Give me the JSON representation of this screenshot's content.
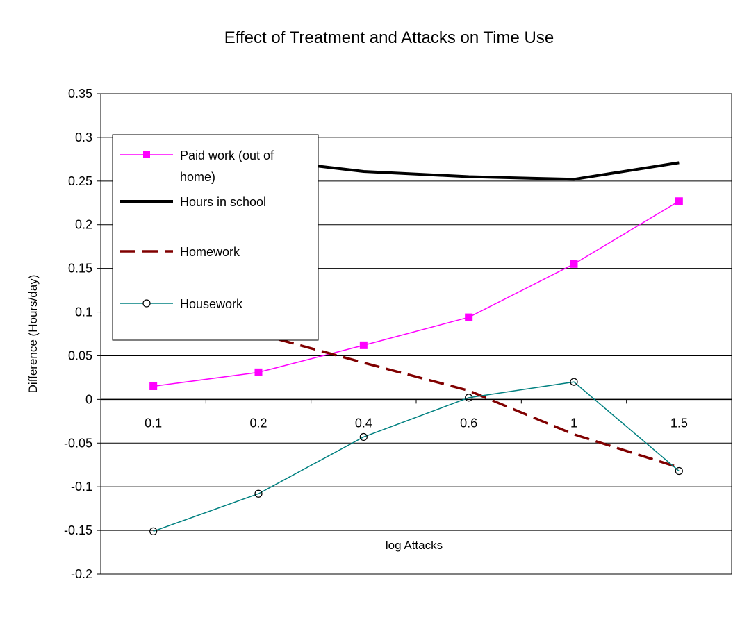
{
  "chart_data": {
    "type": "line",
    "title": "Effect of Treatment and Attacks on Time Use",
    "xlabel": "log Attacks",
    "ylabel": "Difference (Hours/day)",
    "categories": [
      "0.1",
      "0.2",
      "0.4",
      "0.6",
      "1",
      "1.5"
    ],
    "ylim": [
      -0.2,
      0.35
    ],
    "yticks": [
      "0.35",
      "0.3",
      "0.25",
      "0.2",
      "0.15",
      "0.1",
      "0.05",
      "0",
      "-0.05",
      "-0.1",
      "-0.15",
      "-0.2"
    ],
    "grid": true,
    "legend_position": "upper-left",
    "series": [
      {
        "name": "Paid work (out of home)",
        "legend_lines": [
          "Paid work (out of",
          "home)"
        ],
        "values": [
          0.015,
          0.031,
          0.062,
          0.094,
          0.155,
          0.227
        ],
        "color": "#ff00ff",
        "style": "solid-square-markers"
      },
      {
        "name": "Hours in school",
        "legend_lines": [
          "Hours in school"
        ],
        "values": [
          0.28,
          0.275,
          0.261,
          0.255,
          0.252,
          0.271
        ],
        "color": "#000000",
        "style": "thick-solid"
      },
      {
        "name": "Homework",
        "legend_lines": [
          "Homework"
        ],
        "values": [
          0.12,
          0.075,
          0.042,
          0.01,
          -0.04,
          -0.078
        ],
        "color": "#800000",
        "style": "dashed"
      },
      {
        "name": "Housework",
        "legend_lines": [
          "Housework"
        ],
        "values": [
          -0.151,
          -0.108,
          -0.043,
          0.002,
          0.02,
          -0.082
        ],
        "color": "#008080",
        "style": "solid-open-circle-markers"
      }
    ]
  }
}
